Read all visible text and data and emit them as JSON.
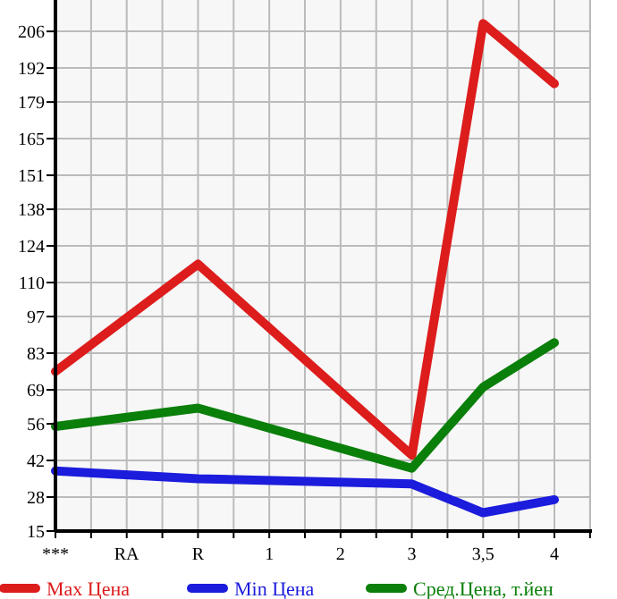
{
  "chart_data": {
    "type": "line",
    "categories": [
      "***",
      "RA",
      "R",
      "1",
      "2",
      "3",
      "3,5",
      "4"
    ],
    "series": [
      {
        "name": "Max Цена",
        "color": "#dd1c1c",
        "values": [
          76,
          null,
          117,
          null,
          null,
          44,
          209,
          186
        ]
      },
      {
        "name": "Min Цена",
        "color": "#1c1cdd",
        "values": [
          38,
          null,
          35,
          null,
          null,
          33,
          22,
          27
        ]
      },
      {
        "name": "Сред.Цена, т.йен",
        "color": "#0a7f0a",
        "values": [
          55,
          null,
          62,
          null,
          null,
          39,
          70,
          87
        ]
      }
    ],
    "ylim": [
      15,
      218
    ],
    "yticks": [
      15,
      28,
      42,
      56,
      69,
      83,
      97,
      110,
      124,
      138,
      151,
      165,
      179,
      192,
      206
    ],
    "grid": true,
    "legend": "bottom",
    "marker": "none",
    "line_style": "solid"
  }
}
